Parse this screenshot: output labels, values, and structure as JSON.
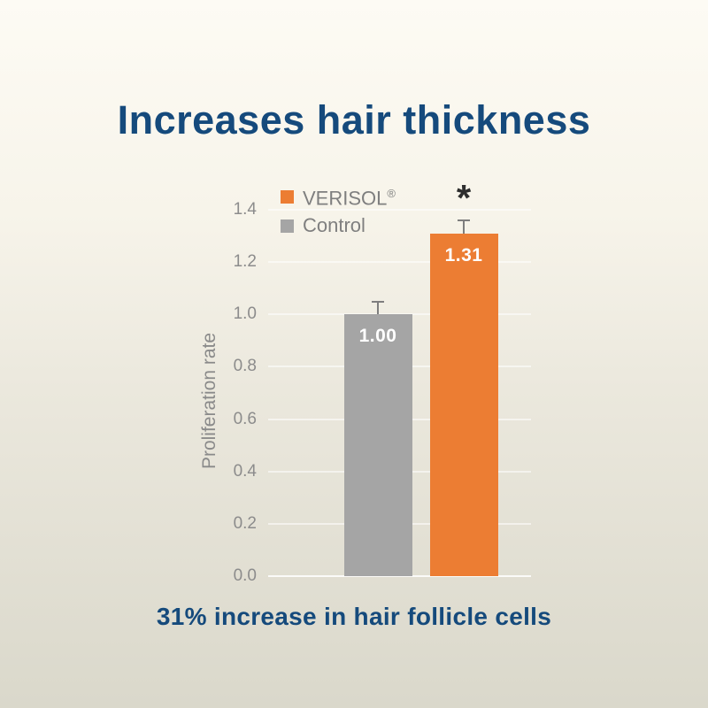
{
  "header": {
    "title": "Increases hair thickness"
  },
  "footer": {
    "caption": "31% increase in hair follicle cells"
  },
  "legend": {
    "position": "top-left-inside",
    "items": [
      {
        "label": "VERISOL",
        "regmark": "®",
        "color": "#ec7d33"
      },
      {
        "label": "Control",
        "regmark": "",
        "color": "#a5a5a5"
      }
    ]
  },
  "chart_data": {
    "type": "bar",
    "title": "",
    "ylabel": "Proliferation rate",
    "xlabel": "",
    "ylim": [
      0.0,
      1.4
    ],
    "ytick_labels": [
      "0.0",
      "0.2",
      "0.4",
      "0.6",
      "0.8",
      "1.0",
      "1.2",
      "1.4"
    ],
    "grid": true,
    "legend_position": "top-left",
    "categories": [
      "Control",
      "VERISOL®"
    ],
    "bars": [
      {
        "name": "Control",
        "value": 1.0,
        "value_label": "1.00",
        "color": "#a5a5a5",
        "error_up": 0.05,
        "annotation": ""
      },
      {
        "name": "VERISOL",
        "value": 1.31,
        "value_label": "1.31",
        "color": "#ec7d33",
        "error_up": 0.05,
        "annotation": "*"
      }
    ]
  },
  "colors": {
    "title_blue": "#154a7c",
    "verisol_orange": "#ec7d33",
    "control_gray": "#a5a5a5",
    "axis_text_gray": "#8c8c8c",
    "legend_text_gray": "#7f7f7f",
    "whisker_gray": "#7e7e7e",
    "background_top": "#fdfbf4",
    "background_bottom": "#dad8cb"
  }
}
